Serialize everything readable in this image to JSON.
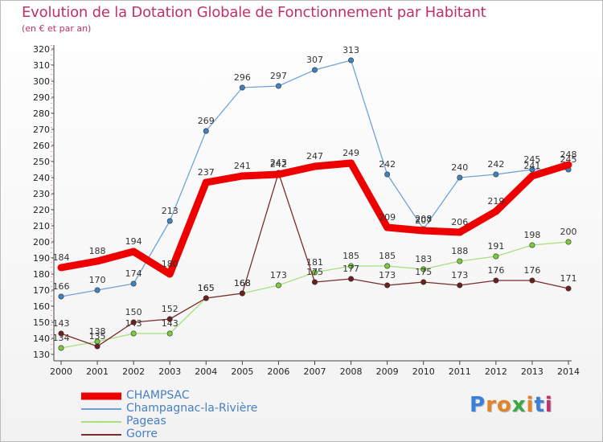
{
  "title": "Evolution de la Dotation Globale de Fonctionnement par Habitant",
  "subtitle": "(en € et par an)",
  "logo": {
    "letters": [
      "P",
      "r",
      "o",
      "x",
      "i",
      "t",
      "i"
    ],
    "colors": [
      "#3a7fd8",
      "#e0852a",
      "#e0852a",
      "#3aa845",
      "#e0852a",
      "#3a7fd8",
      "#c0306a"
    ]
  },
  "chart_data": {
    "type": "line",
    "title": "Evolution de la Dotation Globale de Fonctionnement par Habitant",
    "subtitle": "(en € et par an)",
    "xlabel": "",
    "ylabel": "",
    "x": [
      "2000",
      "2001",
      "2002",
      "2003",
      "2004",
      "2005",
      "2006",
      "2007",
      "2008",
      "2009",
      "2010",
      "2011",
      "2012",
      "2013",
      "2014"
    ],
    "ylim": [
      130,
      320
    ],
    "yticks": [
      130,
      140,
      150,
      160,
      170,
      180,
      190,
      200,
      210,
      220,
      230,
      240,
      250,
      260,
      270,
      280,
      290,
      300,
      310,
      320
    ],
    "grid": false,
    "legend": "bottom-left",
    "series": [
      {
        "name": "Champagnac-la-Rivière",
        "color": "#6fa3d8",
        "marker": "#3f82c2",
        "values": [
          166,
          170,
          174,
          213,
          269,
          296,
          297,
          307,
          313,
          242,
          208,
          240,
          242,
          245,
          245
        ],
        "labels": [
          "166",
          "170",
          "174",
          "213",
          "269",
          "296",
          "297",
          "307",
          "313",
          "242",
          "208",
          "240",
          "242",
          "245",
          "245"
        ]
      },
      {
        "name": "Pageas",
        "color": "#a6e07c",
        "marker": "#7acc3c",
        "values": [
          134,
          138,
          143,
          143,
          165,
          168,
          173,
          181,
          185,
          185,
          183,
          188,
          191,
          198,
          200
        ],
        "labels": [
          "134",
          "138",
          "143",
          "143",
          "165",
          "168",
          "173",
          "181",
          "185",
          "185",
          "183",
          "188",
          "191",
          "198",
          "200"
        ]
      },
      {
        "name": "Gorre",
        "color": "#7a2b2b",
        "marker": "#6b1f1f",
        "values": [
          143,
          135,
          150,
          152,
          165,
          168,
          243,
          175,
          177,
          173,
          175,
          173,
          176,
          176,
          171
        ],
        "labels": [
          "143",
          "135",
          "150",
          "152",
          "165",
          "168",
          "243",
          "175",
          "177",
          "173",
          "175",
          "173",
          "176",
          "176",
          "171"
        ]
      },
      {
        "name": "CHAMPSAC",
        "color": "#ee0000",
        "marker": "#ee0000",
        "values": [
          184,
          188,
          194,
          180,
          237,
          241,
          242,
          247,
          249,
          209,
          207,
          206,
          219,
          241,
          248
        ],
        "labels": [
          "184",
          "188",
          "194",
          "180",
          "237",
          "241",
          "242",
          "247",
          "249",
          "209",
          "207",
          "206",
          "219",
          "241",
          "248"
        ]
      }
    ],
    "legend_entries": [
      "CHAMPSAC",
      "Champagnac-la-Rivière",
      "Pageas",
      "Gorre"
    ]
  }
}
